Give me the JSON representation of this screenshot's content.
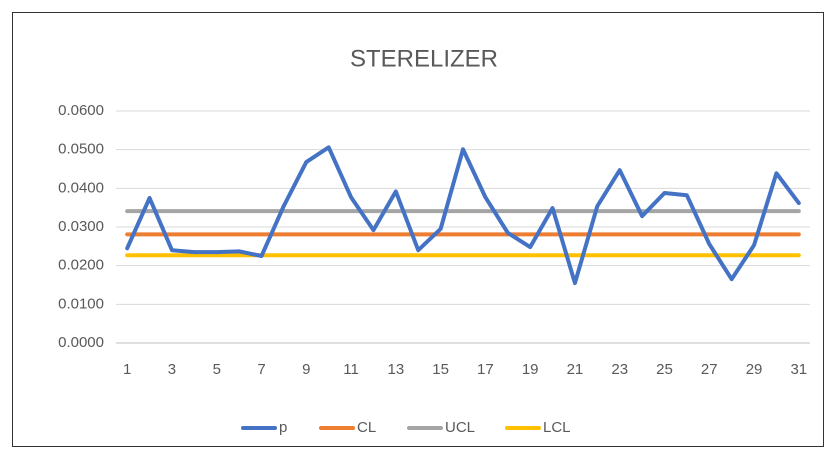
{
  "chart_data": {
    "type": "line",
    "title": "STERELIZER",
    "categories": [
      1,
      null,
      3,
      null,
      5,
      null,
      7,
      null,
      9,
      null,
      11,
      null,
      13,
      null,
      15,
      null,
      17,
      null,
      19,
      null,
      21,
      null,
      23,
      null,
      25,
      null,
      27,
      null,
      29,
      null,
      31
    ],
    "series": [
      {
        "name": "p",
        "color": "#4472c4",
        "values": [
          0.0245,
          0.0375,
          0.024,
          0.0235,
          0.0235,
          0.0237,
          0.0225,
          0.0355,
          0.0468,
          0.0506,
          0.0377,
          0.0292,
          0.0392,
          0.024,
          0.0295,
          0.0501,
          0.0377,
          0.0285,
          0.0248,
          0.0349,
          0.0155,
          0.0354,
          0.0447,
          0.0328,
          0.0388,
          0.0382,
          0.0256,
          0.0165,
          0.0253,
          0.0439,
          0.0362
        ]
      },
      {
        "name": "CL",
        "color": "#ed7d31",
        "values": [
          0.0281,
          0.0281,
          0.0281,
          0.0281,
          0.0281,
          0.0281,
          0.0281,
          0.0281,
          0.0281,
          0.0281,
          0.0281,
          0.0281,
          0.0281,
          0.0281,
          0.0281,
          0.0281,
          0.0281,
          0.0281,
          0.0281,
          0.0281,
          0.0281,
          0.0281,
          0.0281,
          0.0281,
          0.0281,
          0.0281,
          0.0281,
          0.0281,
          0.0281,
          0.0281,
          0.0281
        ]
      },
      {
        "name": "UCL",
        "color": "#a5a5a5",
        "values": [
          0.0341,
          0.0341,
          0.0341,
          0.0341,
          0.0341,
          0.0341,
          0.0341,
          0.0341,
          0.0341,
          0.0341,
          0.0341,
          0.0341,
          0.0341,
          0.0341,
          0.0341,
          0.0341,
          0.0341,
          0.0341,
          0.0341,
          0.0341,
          0.0341,
          0.0341,
          0.0341,
          0.0341,
          0.0341,
          0.0341,
          0.0341,
          0.0341,
          0.0341,
          0.0341,
          0.0341
        ]
      },
      {
        "name": "LCL",
        "color": "#ffc000",
        "values": [
          0.0227,
          0.0227,
          0.0227,
          0.0227,
          0.0227,
          0.0227,
          0.0227,
          0.0227,
          0.0227,
          0.0227,
          0.0227,
          0.0227,
          0.0227,
          0.0227,
          0.0227,
          0.0227,
          0.0227,
          0.0227,
          0.0227,
          0.0227,
          0.0227,
          0.0227,
          0.0227,
          0.0227,
          0.0227,
          0.0227,
          0.0227,
          0.0227,
          0.0227,
          0.0227,
          0.0227
        ]
      }
    ],
    "ylim": [
      0,
      0.06
    ],
    "yticks": [
      {
        "value": 0,
        "label": "0.0000"
      },
      {
        "value": 0.01,
        "label": "0.0100"
      },
      {
        "value": 0.02,
        "label": "0.0200"
      },
      {
        "value": 0.03,
        "label": "0.0300"
      },
      {
        "value": 0.04,
        "label": "0.0400"
      },
      {
        "value": 0.05,
        "label": "0.0500"
      },
      {
        "value": 0.06,
        "label": "0.0600"
      }
    ],
    "grid": true,
    "legend": "bottom"
  }
}
